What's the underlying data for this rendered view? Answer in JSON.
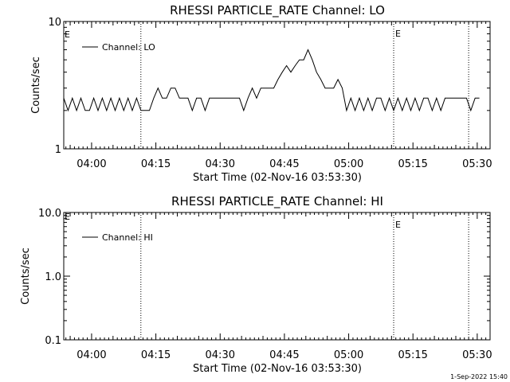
{
  "footer": {
    "timestamp": "1-Sep-2022 15:40"
  },
  "chart_data": [
    {
      "type": "line",
      "title": "RHESSI PARTICLE_RATE Channel: LO",
      "xlabel": "Start Time (02-Nov-16 03:53:30)",
      "ylabel": "Counts/sec",
      "y_scale": "log",
      "ylim": [
        1,
        10
      ],
      "y_ticks": [
        {
          "value": 1,
          "label": "1"
        },
        {
          "value": 10,
          "label": "10"
        }
      ],
      "x_range_minutes": [
        "03:53:30",
        "05:33:00"
      ],
      "x_ticks": [
        "04:00",
        "04:15",
        "04:30",
        "04:45",
        "05:00",
        "05:15",
        "05:30"
      ],
      "markers": [
        {
          "time": "04:11:30",
          "label": ""
        },
        {
          "time": "05:10:30",
          "label": "E"
        },
        {
          "time": "05:28:00",
          "label": ""
        }
      ],
      "left_marker_label": "E",
      "series": [
        {
          "name": "Channel: LO",
          "x": [
            "03:53:30",
            "03:54:30",
            "03:55:30",
            "03:56:30",
            "03:57:30",
            "03:58:30",
            "03:59:30",
            "04:00:30",
            "04:01:30",
            "04:02:30",
            "04:03:30",
            "04:04:30",
            "04:05:30",
            "04:06:30",
            "04:07:30",
            "04:08:30",
            "04:09:30",
            "04:10:30",
            "04:11:30",
            "04:12:30",
            "04:13:30",
            "04:14:30",
            "04:15:30",
            "04:16:30",
            "04:17:30",
            "04:18:30",
            "04:19:30",
            "04:20:30",
            "04:21:30",
            "04:22:30",
            "04:23:30",
            "04:24:30",
            "04:25:30",
            "04:26:30",
            "04:27:30",
            "04:28:30",
            "04:29:30",
            "04:30:30",
            "04:31:30",
            "04:32:30",
            "04:33:30",
            "04:34:30",
            "04:35:30",
            "04:36:30",
            "04:37:30",
            "04:38:30",
            "04:39:30",
            "04:40:30",
            "04:41:30",
            "04:42:30",
            "04:43:30",
            "04:44:30",
            "04:45:30",
            "04:46:30",
            "04:47:30",
            "04:48:30",
            "04:49:30",
            "04:50:30",
            "04:51:30",
            "04:52:30",
            "04:53:30",
            "04:54:30",
            "04:55:30",
            "04:56:30",
            "04:57:30",
            "04:58:30",
            "04:59:30",
            "05:00:30",
            "05:01:30",
            "05:02:30",
            "05:03:30",
            "05:04:30",
            "05:05:30",
            "05:06:30",
            "05:07:30",
            "05:08:30",
            "05:09:30",
            "05:10:30",
            "05:11:30",
            "05:12:30",
            "05:13:30",
            "05:14:30",
            "05:15:30",
            "05:16:30",
            "05:17:30",
            "05:18:30",
            "05:19:30",
            "05:20:30",
            "05:21:30",
            "05:22:30",
            "05:23:30",
            "05:24:30",
            "05:25:30",
            "05:26:30",
            "05:27:30",
            "05:28:30",
            "05:29:30",
            "05:30:30"
          ],
          "y": [
            2.5,
            2,
            2.5,
            2,
            2.5,
            2,
            2,
            2.5,
            2,
            2.5,
            2,
            2.5,
            2,
            2.5,
            2,
            2.5,
            2,
            2.5,
            2,
            2,
            2,
            2.5,
            3,
            2.5,
            2.5,
            3,
            3,
            2.5,
            2.5,
            2.5,
            2,
            2.5,
            2.5,
            2,
            2.5,
            2.5,
            2.5,
            2.5,
            2.5,
            2.5,
            2.5,
            2.5,
            2,
            2.5,
            3,
            2.5,
            3,
            3,
            3,
            3,
            3.5,
            4,
            4.5,
            4,
            4.5,
            5,
            5,
            6,
            5,
            4,
            3.5,
            3,
            3,
            3,
            3.5,
            3,
            2,
            2.5,
            2,
            2.5,
            2,
            2.5,
            2,
            2.5,
            2.5,
            2,
            2.5,
            2,
            2.5,
            2,
            2.5,
            2,
            2.5,
            2,
            2.5,
            2.5,
            2,
            2.5,
            2,
            2.5,
            2.5,
            2.5,
            2.5,
            2.5,
            2.5,
            2,
            2.5,
            2.5
          ]
        }
      ]
    },
    {
      "type": "line",
      "title": "RHESSI PARTICLE_RATE Channel: HI",
      "xlabel": "Start Time (02-Nov-16 03:53:30)",
      "ylabel": "Counts/sec",
      "y_scale": "log",
      "ylim": [
        0.1,
        10
      ],
      "y_ticks": [
        {
          "value": 0.1,
          "label": "0.1"
        },
        {
          "value": 1,
          "label": "1.0"
        },
        {
          "value": 10,
          "label": "10.0"
        }
      ],
      "x_range_minutes": [
        "03:53:30",
        "05:33:00"
      ],
      "x_ticks": [
        "04:00",
        "04:15",
        "04:30",
        "04:45",
        "05:00",
        "05:15",
        "05:30"
      ],
      "markers": [
        {
          "time": "04:11:30",
          "label": ""
        },
        {
          "time": "05:10:30",
          "label": "E"
        },
        {
          "time": "05:28:00",
          "label": ""
        }
      ],
      "left_marker_label": "E",
      "series": [
        {
          "name": "Channel: HI",
          "x": [],
          "y": []
        }
      ]
    }
  ]
}
